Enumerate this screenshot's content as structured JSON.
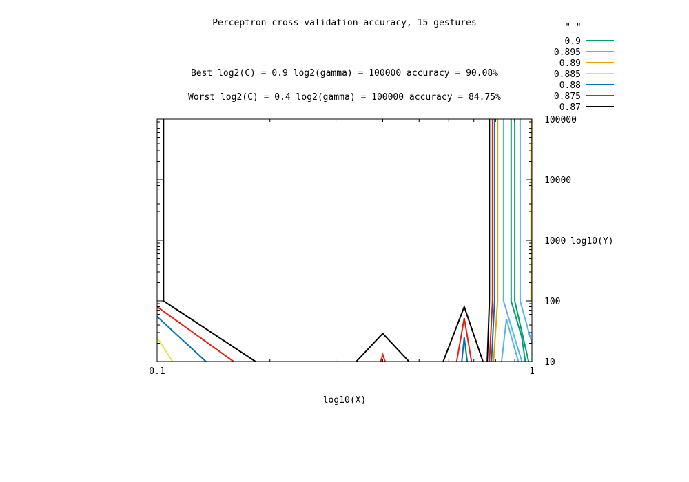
{
  "chart_data": {
    "type": "line",
    "title": "Perceptron cross-validation accuracy, 15 gestures",
    "best_label": "Best log2(C) = 0.9  log2(gamma) = 100000  accuracy = 90.08%",
    "worst_label": "Worst log2(C) = 0.4  log2(gamma) = 100000   accuracy = 84.75%",
    "xlabel": "log10(X)",
    "ylabel": "log10(Y)",
    "x_scale": "log",
    "y_scale": "log",
    "xlim": [
      0.1,
      1
    ],
    "ylim": [
      10,
      100000
    ],
    "x_tick_labels": [
      {
        "v": 0.1,
        "label": "0.1"
      },
      {
        "v": 1,
        "label": "1"
      }
    ],
    "y_tick_labels": [
      {
        "v": 10,
        "label": "10"
      },
      {
        "v": 100,
        "label": "100"
      },
      {
        "v": 1000,
        "label": "1000"
      },
      {
        "v": 10000,
        "label": "10000"
      },
      {
        "v": 100000,
        "label": "100000"
      }
    ],
    "legend_title": "\"_\"",
    "legend_position": "top-right outside",
    "series": [
      {
        "name": "0.9",
        "color": "#009e73",
        "lines": [
          [
            [
              0.88,
              100000
            ],
            [
              0.88,
              100
            ],
            [
              0.94,
              25
            ],
            [
              0.96,
              10
            ]
          ],
          [
            [
              0.9,
              100000
            ],
            [
              0.9,
              100
            ],
            [
              0.98,
              10
            ]
          ]
        ]
      },
      {
        "name": "0.895",
        "color": "#56b4e9",
        "lines": [
          [
            [
              0.84,
              100000
            ],
            [
              0.84,
              100
            ],
            [
              0.94,
              10
            ]
          ],
          [
            [
              0.93,
              100000
            ],
            [
              0.93,
              100
            ],
            [
              1.0,
              20
            ]
          ],
          [
            [
              0.83,
              10
            ],
            [
              0.855,
              50
            ],
            [
              0.92,
              10
            ]
          ]
        ]
      },
      {
        "name": "0.89",
        "color": "#e69f00",
        "lines": [
          [
            [
              0.81,
              100000
            ],
            [
              0.81,
              100
            ],
            [
              0.79,
              10
            ]
          ],
          [
            [
              0.995,
              100000
            ],
            [
              0.995,
              100
            ]
          ]
        ]
      },
      {
        "name": "0.885",
        "color": "#f0e442",
        "lines": [
          [
            [
              0.1,
              25
            ],
            [
              0.11,
              10
            ]
          ]
        ]
      },
      {
        "name": "0.88",
        "color": "#0072b2",
        "lines": [
          [
            [
              0.795,
              100000
            ],
            [
              0.795,
              100
            ],
            [
              0.78,
              10
            ]
          ],
          [
            [
              0.1,
              55
            ],
            [
              0.135,
              10
            ]
          ],
          [
            [
              0.65,
              10
            ],
            [
              0.66,
              25
            ],
            [
              0.672,
              10
            ]
          ]
        ]
      },
      {
        "name": "0.875",
        "color": "#e51e10",
        "lines": [
          [
            [
              0.785,
              100000
            ],
            [
              0.785,
              100
            ],
            [
              0.77,
              10
            ]
          ],
          [
            [
              0.1,
              80
            ],
            [
              0.16,
              10
            ]
          ],
          [
            [
              0.395,
              10
            ],
            [
              0.4,
              13
            ],
            [
              0.406,
              10
            ]
          ],
          [
            [
              0.63,
              10
            ],
            [
              0.66,
              52
            ],
            [
              0.69,
              10
            ]
          ]
        ]
      },
      {
        "name": "0.87",
        "color": "#000000",
        "lines": [
          [
            [
              0.77,
              100000
            ],
            [
              0.77,
              100
            ],
            [
              0.76,
              10
            ]
          ],
          [
            [
              0.104,
              100000
            ],
            [
              0.104,
              100
            ],
            [
              0.183,
              10
            ]
          ],
          [
            [
              0.34,
              10
            ],
            [
              0.4,
              29
            ],
            [
              0.47,
              10
            ]
          ],
          [
            [
              0.58,
              10
            ],
            [
              0.66,
              80
            ],
            [
              0.74,
              10
            ]
          ]
        ]
      }
    ]
  }
}
